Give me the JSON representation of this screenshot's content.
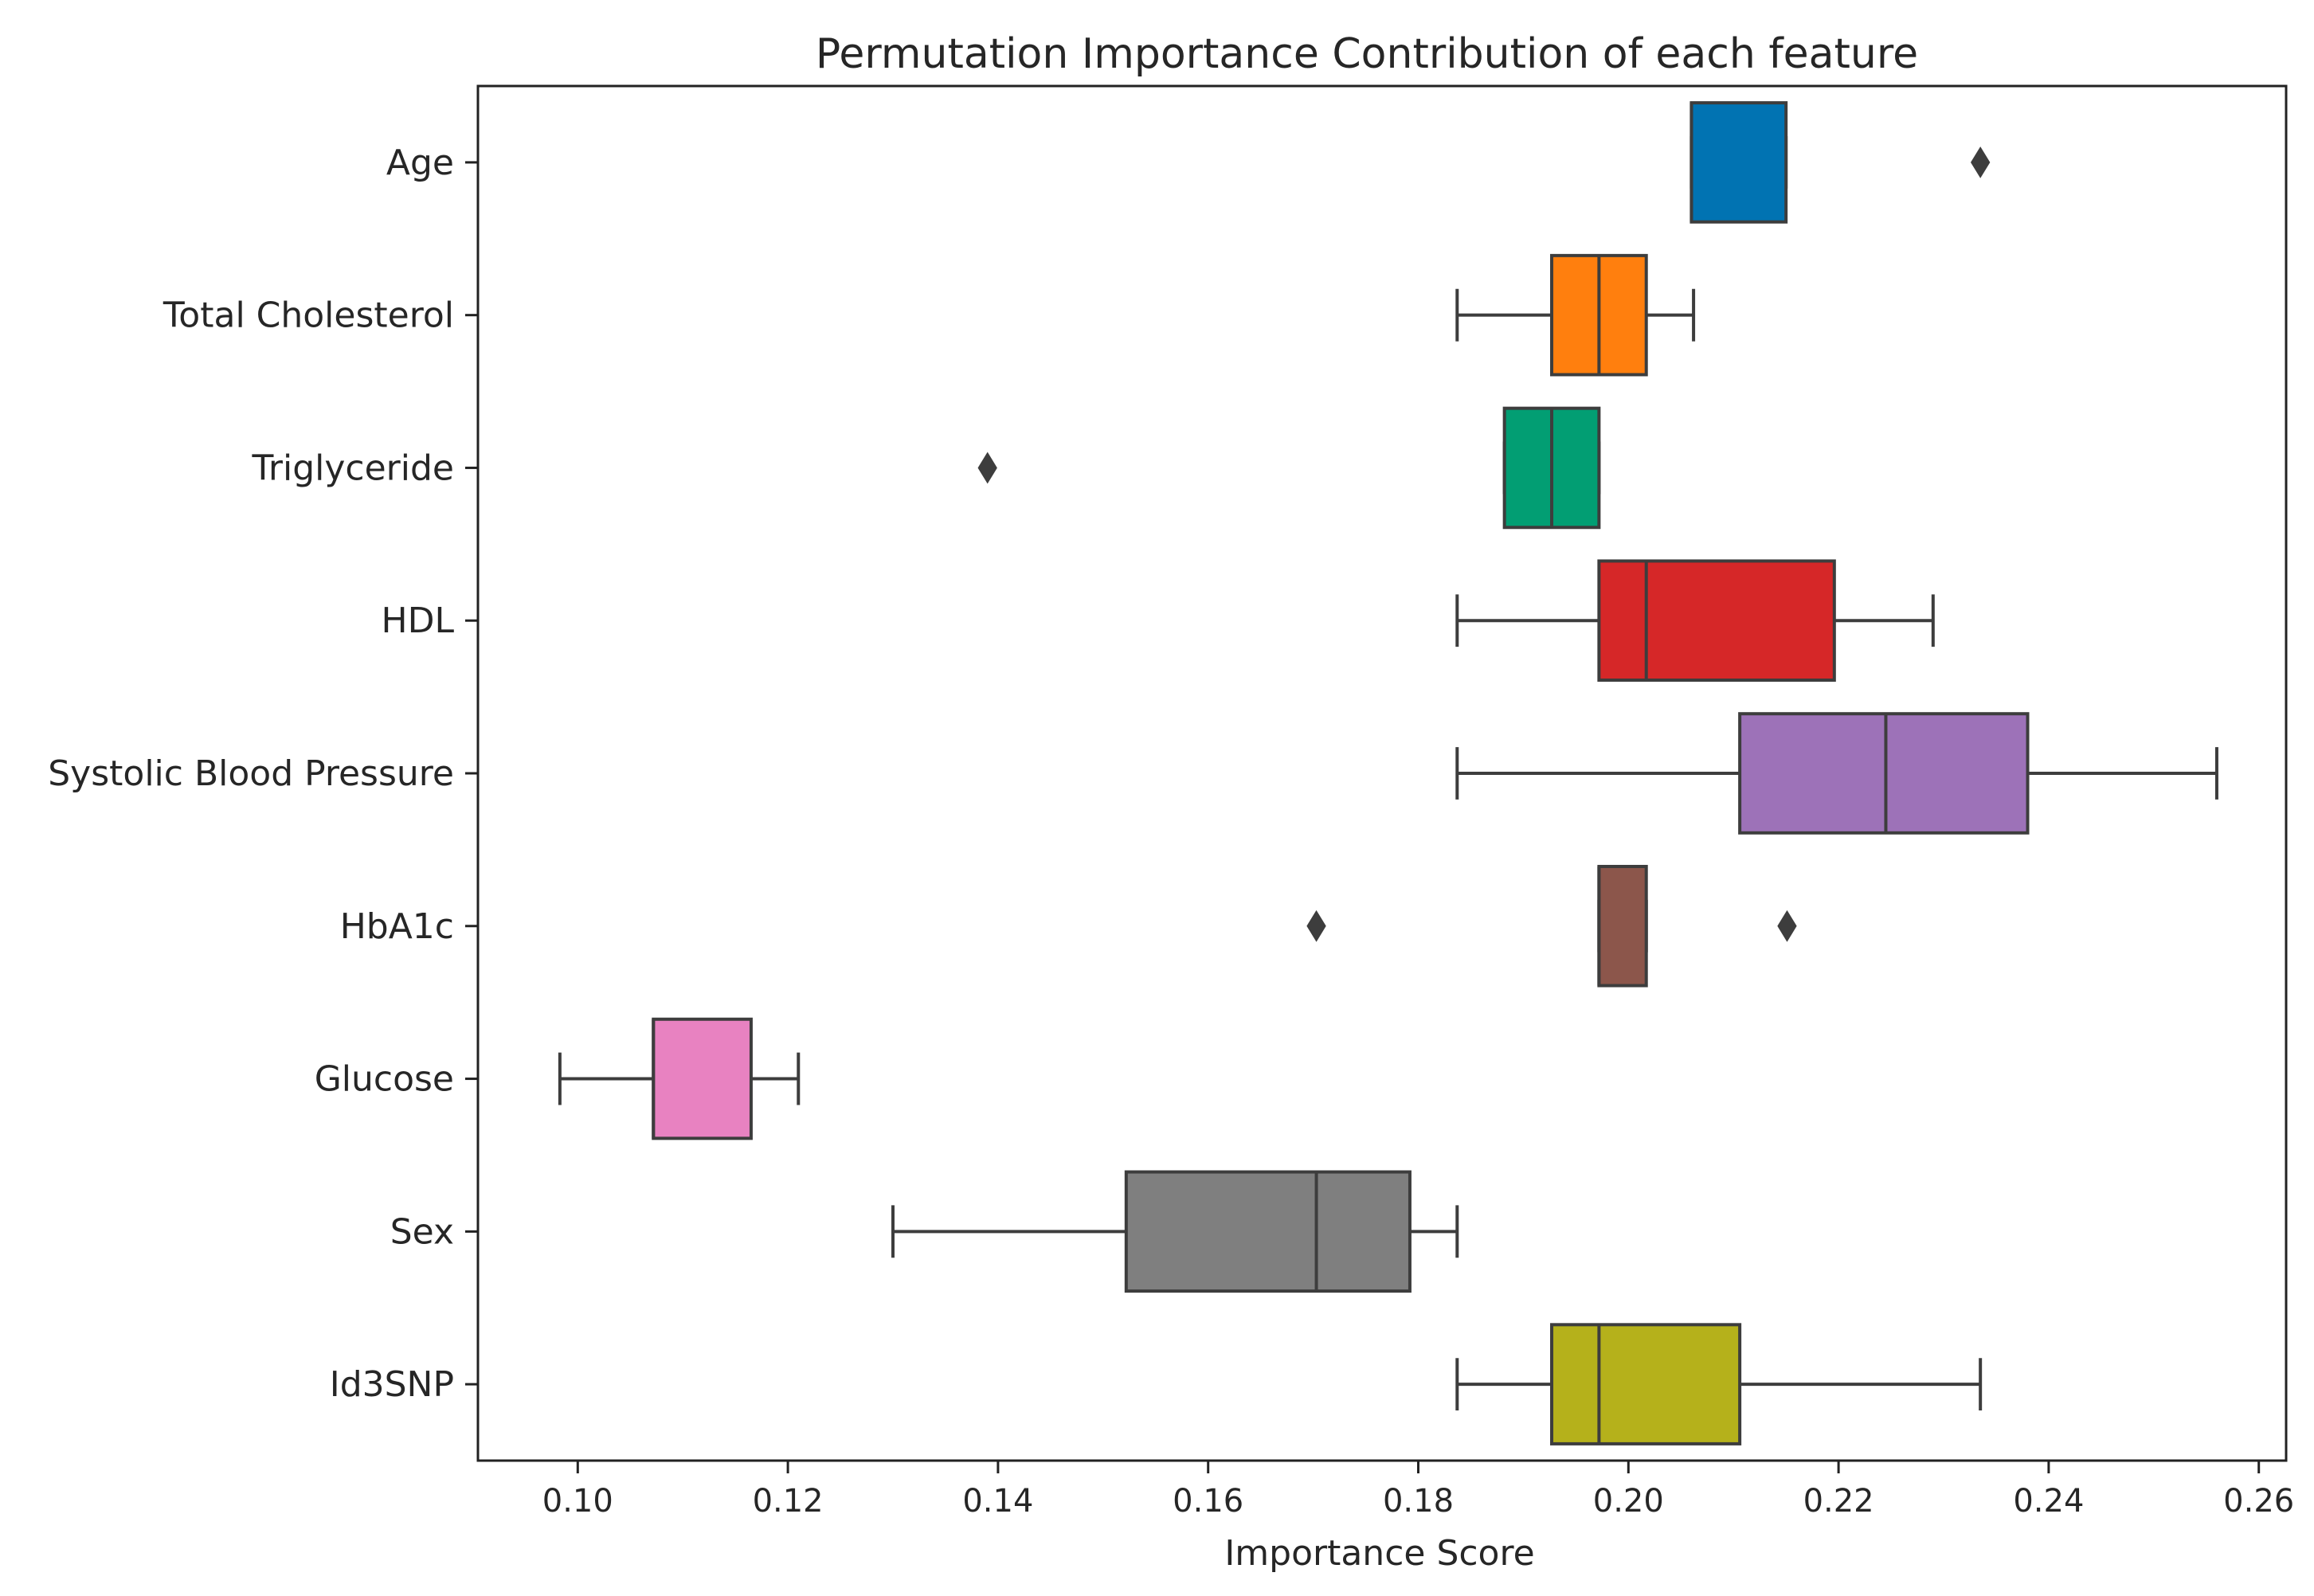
{
  "chart_data": {
    "type": "boxplot",
    "orientation": "horizontal",
    "title": "Permutation Importance Contribution of each feature",
    "xlabel": "Importance Score",
    "ylabel": "",
    "xlim": [
      0.0905,
      0.2626
    ],
    "x_ticks": [
      0.1,
      0.12,
      0.14,
      0.16,
      0.18,
      0.2,
      0.22,
      0.24,
      0.26
    ],
    "x_tick_labels": [
      "0.10",
      "0.12",
      "0.14",
      "0.16",
      "0.18",
      "0.20",
      "0.22",
      "0.24",
      "0.26"
    ],
    "grid": false,
    "legend": "none",
    "boxes": [
      {
        "label": "Age",
        "color": "#0173b2",
        "whisker_low": 0.206,
        "q1": 0.206,
        "median": 0.206,
        "q3": 0.215,
        "whisker_high": 0.215,
        "outliers": [
          0.2335
        ]
      },
      {
        "label": "Total Cholesterol",
        "color": "#ff7f0e",
        "whisker_low": 0.1837,
        "q1": 0.1927,
        "median": 0.1972,
        "q3": 0.2017,
        "whisker_high": 0.2062,
        "outliers": []
      },
      {
        "label": "Triglyceride",
        "color": "#029e73",
        "whisker_low": 0.1882,
        "q1": 0.1882,
        "median": 0.1927,
        "q3": 0.1972,
        "whisker_high": 0.1972,
        "outliers": [
          0.139
        ]
      },
      {
        "label": "HDL",
        "color": "#d62728",
        "whisker_low": 0.1837,
        "q1": 0.1972,
        "median": 0.2017,
        "q3": 0.2196,
        "whisker_high": 0.229,
        "outliers": []
      },
      {
        "label": "Systolic Blood Pressure",
        "color": "#9d72b8",
        "whisker_low": 0.1837,
        "q1": 0.2106,
        "median": 0.2245,
        "q3": 0.238,
        "whisker_high": 0.256,
        "outliers": []
      },
      {
        "label": "HbA1c",
        "color": "#8c564b",
        "whisker_low": 0.1972,
        "q1": 0.1972,
        "median": 0.1972,
        "q3": 0.2017,
        "whisker_high": 0.2017,
        "outliers": [
          0.1703,
          0.2151
        ]
      },
      {
        "label": "Glucose",
        "color": "#e882c1",
        "whisker_low": 0.0983,
        "q1": 0.1072,
        "median": 0.1072,
        "q3": 0.1165,
        "whisker_high": 0.121,
        "outliers": []
      },
      {
        "label": "Sex",
        "color": "#7f7f7f",
        "whisker_low": 0.13,
        "q1": 0.1522,
        "median": 0.1703,
        "q3": 0.1792,
        "whisker_high": 0.1837,
        "outliers": []
      },
      {
        "label": "Id3SNP",
        "color": "#b5b11b",
        "whisker_low": 0.1837,
        "q1": 0.1927,
        "median": 0.1972,
        "q3": 0.2106,
        "whisker_high": 0.2335,
        "outliers": []
      }
    ]
  }
}
